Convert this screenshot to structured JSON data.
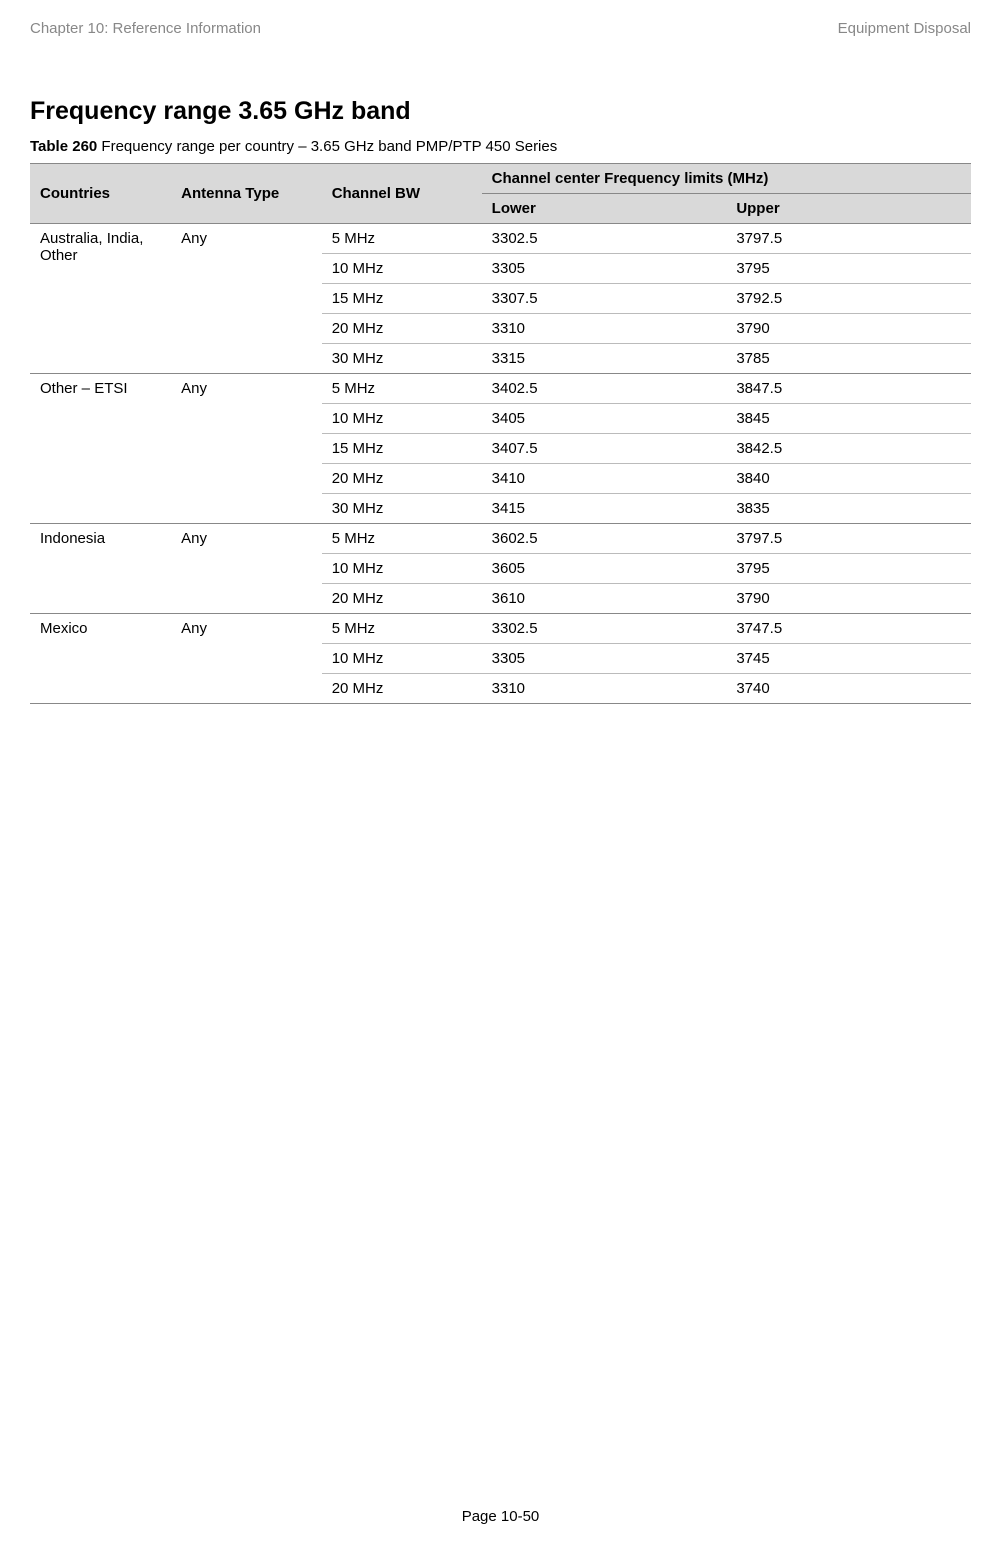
{
  "header": {
    "left": "Chapter 10:  Reference Information",
    "right": "Equipment Disposal"
  },
  "title": "Frequency range 3.65 GHz band",
  "caption": {
    "bold": "Table 260",
    "rest": " Frequency range per country – 3.65 GHz band PMP/PTP 450 Series"
  },
  "table": {
    "hdr": {
      "countries": "Countries",
      "antenna": "Antenna Type",
      "bw": "Channel BW",
      "limits": "Channel center Frequency limits (MHz)",
      "lower": "Lower",
      "upper": "Upper"
    },
    "groups": [
      {
        "country": "Australia, India, Other",
        "antenna": "Any",
        "rows": [
          {
            "bw": "5 MHz",
            "lo": "3302.5",
            "hi": "3797.5"
          },
          {
            "bw": "10 MHz",
            "lo": "3305",
            "hi": "3795"
          },
          {
            "bw": "15 MHz",
            "lo": "3307.5",
            "hi": "3792.5"
          },
          {
            "bw": "20 MHz",
            "lo": "3310",
            "hi": "3790"
          },
          {
            "bw": "30 MHz",
            "lo": "3315",
            "hi": "3785"
          }
        ]
      },
      {
        "country": "Other – ETSI",
        "antenna": "Any",
        "rows": [
          {
            "bw": "5 MHz",
            "lo": "3402.5",
            "hi": "3847.5"
          },
          {
            "bw": "10 MHz",
            "lo": "3405",
            "hi": "3845"
          },
          {
            "bw": "15 MHz",
            "lo": "3407.5",
            "hi": "3842.5"
          },
          {
            "bw": "20 MHz",
            "lo": "3410",
            "hi": "3840"
          },
          {
            "bw": "30 MHz",
            "lo": "3415",
            "hi": "3835"
          }
        ]
      },
      {
        "country": "Indonesia",
        "antenna": "Any",
        "rows": [
          {
            "bw": "5 MHz",
            "lo": "3602.5",
            "hi": "3797.5"
          },
          {
            "bw": "10 MHz",
            "lo": "3605",
            "hi": "3795"
          },
          {
            "bw": "20 MHz",
            "lo": "3610",
            "hi": "3790"
          }
        ]
      },
      {
        "country": "Mexico",
        "antenna": "Any",
        "rows": [
          {
            "bw": "5 MHz",
            "lo": "3302.5",
            "hi": "3747.5"
          },
          {
            "bw": "10 MHz",
            "lo": "3305",
            "hi": "3745"
          },
          {
            "bw": "20 MHz",
            "lo": "3310",
            "hi": "3740"
          }
        ]
      }
    ]
  },
  "footer": "Page 10-50"
}
